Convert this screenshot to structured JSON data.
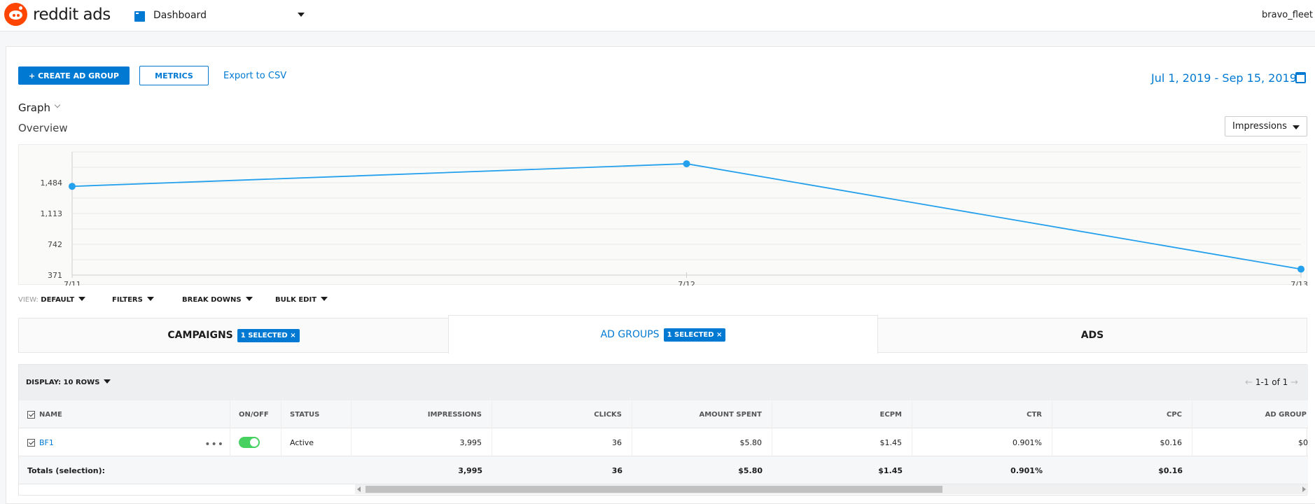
{
  "header": {
    "brand": "reddit ads",
    "dashboard_label": "Dashboard",
    "user": "bravo_fleet",
    "icons": [
      "reddit-logo-icon",
      "dashboard-icon",
      "chevron-down-icon"
    ]
  },
  "toolbar": {
    "create_label": "+ CREATE AD GROUP",
    "metrics_label": "METRICS",
    "export_label": "Export to CSV",
    "date_range": "Jul 1, 2019 - Sep 15, 2019"
  },
  "graph": {
    "toggle_label": "Graph",
    "overview_label": "Overview",
    "metric_selected": "Impressions"
  },
  "chart_data": {
    "type": "line",
    "title": "",
    "xlabel": "",
    "ylabel": "",
    "categories": [
      "7/11",
      "7/12",
      "7/13"
    ],
    "y_ticks": [
      "371",
      "742",
      "1,113",
      "1,484"
    ],
    "y_tick_values": [
      371,
      742,
      1113,
      1484
    ],
    "ylim": [
      371,
      1855
    ],
    "series": [
      {
        "values": [
          1440,
          1712,
          443
        ]
      }
    ],
    "color": "#24a0ed",
    "grid": true
  },
  "filters": {
    "view_prefix": "VIEW:",
    "view_value": "DEFAULT",
    "filters_label": "FILTERS",
    "breakdowns_label": "BREAK DOWNS",
    "bulk_edit_label": "BULK EDIT"
  },
  "tabs": [
    {
      "label": "CAMPAIGNS",
      "badge": "1 SELECTED ×"
    },
    {
      "label": "AD GROUPS",
      "badge": "1 SELECTED ×"
    },
    {
      "label": "ADS"
    }
  ],
  "table": {
    "display_label": "DISPLAY: 10 ROWS",
    "pager": "1-1 of 1",
    "columns": {
      "name": "NAME",
      "onoff": "ON/OFF",
      "status": "STATUS",
      "impressions": "IMPRESSIONS",
      "clicks": "CLICKS",
      "amount_spent": "AMOUNT SPENT",
      "ecpm": "ECPM",
      "ctr": "CTR",
      "cpc": "CPC",
      "ad_group": "AD GROUP"
    },
    "rows": [
      {
        "name": "BF1",
        "on": true,
        "status": "Active",
        "impressions": "3,995",
        "clicks": "36",
        "amount_spent": "$5.80",
        "ecpm": "$1.45",
        "ctr": "0.901%",
        "cpc": "$0.16",
        "ad_group": "$0"
      }
    ],
    "totals": {
      "label": "Totals (selection):",
      "impressions": "3,995",
      "clicks": "36",
      "amount_spent": "$5.80",
      "ecpm": "$1.45",
      "ctr": "0.901%",
      "cpc": "$0.16"
    }
  }
}
